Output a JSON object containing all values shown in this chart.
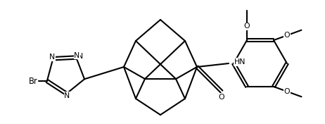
{
  "background_color": "#ffffff",
  "line_color": "#000000",
  "line_width": 1.5,
  "font_size": 7.8,
  "figsize": [
    4.62,
    1.76
  ],
  "dpi": 100,
  "xlim": [
    0,
    462
  ],
  "ylim": [
    0,
    176
  ]
}
